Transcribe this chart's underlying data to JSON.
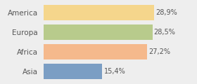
{
  "categories": [
    "America",
    "Europa",
    "Africa",
    "Asia"
  ],
  "values": [
    28.9,
    28.5,
    27.2,
    15.4
  ],
  "labels": [
    "28,9%",
    "28,5%",
    "27,2%",
    "15,4%"
  ],
  "bar_colors": [
    "#f5d68c",
    "#b8cb8c",
    "#f5b98c",
    "#7b9ec4"
  ],
  "background_color": "#eeeeee",
  "xlim": [
    0,
    34
  ],
  "bar_height": 0.78,
  "label_fontsize": 7.0,
  "category_fontsize": 7.5,
  "text_color": "#555555",
  "figsize": [
    2.8,
    1.2
  ],
  "dpi": 100
}
